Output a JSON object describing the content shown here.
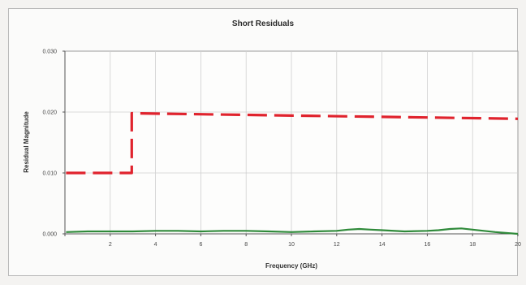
{
  "chart_data": {
    "type": "line",
    "title": "Short Residuals",
    "xlabel": "Frequency (GHz)",
    "ylabel": "Residual Magnitude",
    "xlim": [
      0,
      20
    ],
    "ylim": [
      0,
      0.03
    ],
    "x_ticks": [
      0,
      2,
      4,
      6,
      8,
      10,
      12,
      14,
      16,
      18,
      20
    ],
    "x_tick_labels": [
      "",
      "2",
      "4",
      "6",
      "8",
      "10",
      "12",
      "14",
      "16",
      "18",
      "20"
    ],
    "y_ticks": [
      0,
      0.01,
      0.02,
      0.03
    ],
    "y_tick_labels": [
      "0.000",
      "0.010",
      "0.020",
      "0.030"
    ],
    "grid": true,
    "legend": "none",
    "series": [
      {
        "style": "dashed",
        "color": "#e0232d",
        "x": [
          0.05,
          2.95,
          2.95,
          3.0,
          20.0
        ],
        "y": [
          0.01,
          0.01,
          0.0198,
          0.0198,
          0.0189
        ]
      },
      {
        "style": "solid",
        "color": "#2f8a3a",
        "x": [
          0.05,
          1,
          2,
          3,
          4,
          5,
          6,
          7,
          8,
          9,
          10,
          11,
          12,
          12.5,
          13,
          13.5,
          14,
          15,
          16,
          16.5,
          17,
          17.5,
          18,
          19,
          20
        ],
        "y": [
          0.0003,
          0.0004,
          0.0004,
          0.0004,
          0.0005,
          0.0005,
          0.0004,
          0.0005,
          0.0005,
          0.0004,
          0.0003,
          0.0004,
          0.0005,
          0.0007,
          0.0008,
          0.0007,
          0.0006,
          0.0004,
          0.0005,
          0.0006,
          0.0008,
          0.0009,
          0.0007,
          0.0003,
          0.0
        ]
      }
    ]
  }
}
